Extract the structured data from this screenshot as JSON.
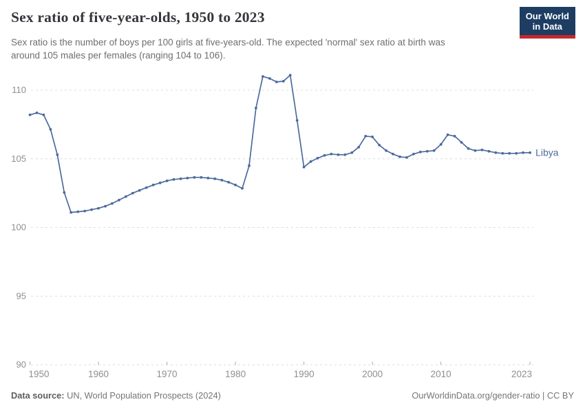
{
  "header": {
    "title": "Sex ratio of five-year-olds, 1950 to 2023",
    "logo": {
      "line1": "Our World",
      "line2": "in Data"
    }
  },
  "subtitle": {
    "line1": "Sex ratio is the number of boys per 100 girls at five-years-old. The expected 'normal' sex ratio at birth was",
    "line2": "around 105 males per females (ranging 104 to 106)."
  },
  "footer": {
    "source_label": "Data source:",
    "source_text": " UN, World Population Prospects (2024)",
    "rights": "OurWorldinData.org/gender-ratio | CC BY"
  },
  "colors": {
    "line": "#4c6a9e",
    "entity_label": "#4c6a9e",
    "grid": "#dcdcdc",
    "tick": "#ababab",
    "axis_text": "#8f8f8f",
    "logo_bg": "#1d3d63",
    "logo_stripe": "#c5292e"
  },
  "chart_data": {
    "type": "line",
    "title": "Sex ratio of five-year-olds, 1950 to 2023",
    "subtitle": "Sex ratio is the number of boys per 100 girls at five-years-old. The expected 'normal' sex ratio at birth was around 105 males per females (ranging 104 to 106).",
    "xlabel": "",
    "ylabel": "",
    "x_range": [
      1950,
      2023
    ],
    "x_step": 1,
    "x_ticks": [
      1950,
      1960,
      1970,
      1980,
      1990,
      2000,
      2010,
      2023
    ],
    "y_ticks": [
      90,
      95,
      100,
      105,
      110
    ],
    "ylim": [
      90,
      111.9
    ],
    "grid": "horizontal-dashed",
    "legend_position": "line-end-label",
    "markers": true,
    "series": [
      {
        "name": "Libya",
        "color": "#4c6a9e",
        "values": [
          108.2,
          108.35,
          108.2,
          107.15,
          105.3,
          102.55,
          101.1,
          101.15,
          101.2,
          101.3,
          101.4,
          101.55,
          101.75,
          102.0,
          102.25,
          102.5,
          102.7,
          102.9,
          103.1,
          103.25,
          103.4,
          103.5,
          103.55,
          103.6,
          103.65,
          103.65,
          103.6,
          103.55,
          103.45,
          103.3,
          103.1,
          102.85,
          104.5,
          108.7,
          111.0,
          110.85,
          110.6,
          110.65,
          111.1,
          107.8,
          104.4,
          104.8,
          105.05,
          105.25,
          105.35,
          105.3,
          105.3,
          105.45,
          105.85,
          106.65,
          106.6,
          106.0,
          105.6,
          105.35,
          105.15,
          105.1,
          105.35,
          105.5,
          105.55,
          105.6,
          106.05,
          106.75,
          106.65,
          106.2,
          105.75,
          105.6,
          105.65,
          105.55,
          105.45,
          105.4,
          105.4,
          105.4,
          105.45,
          105.45
        ]
      }
    ]
  }
}
